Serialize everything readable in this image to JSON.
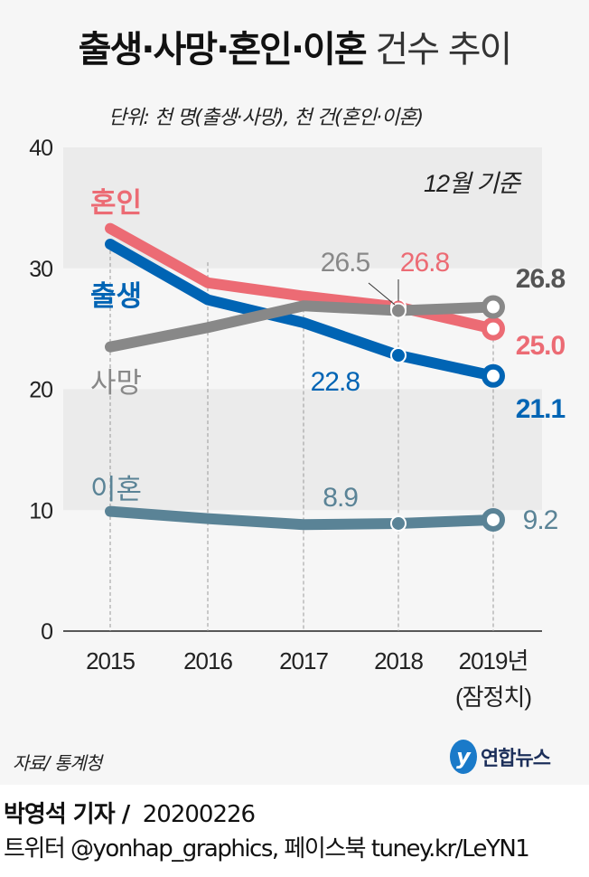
{
  "title": {
    "bold": "출생·사망·혼인·이혼",
    "light": "건수 추이"
  },
  "unit_note": "단위: 천 명(출생·사망), 천 건(혼인·이혼)",
  "basis_note": "12월 기준",
  "source": "자료/ 통계청",
  "logo_text": "연합뉴스",
  "byline": {
    "reporter": "박영석 기자 /",
    "date": "20200226"
  },
  "sns": "트위터 @yonhap_graphics, 페이스북 tuney.kr/LeYN1",
  "chart_data": {
    "type": "line",
    "categories": [
      "2015",
      "2016",
      "2017",
      "2018",
      "2019년"
    ],
    "category_sublabel": "(잠정치)",
    "ylim": [
      0,
      40
    ],
    "yticks": [
      "0",
      "10",
      "20",
      "30",
      "40"
    ],
    "grid": "alternating horizontal bands",
    "series": [
      {
        "name": "혼인",
        "color": "#ec6b74",
        "values": [
          33.3,
          28.8,
          27.7,
          26.8,
          25.0
        ],
        "labels": {
          "3": "26.8",
          "4": "25.0"
        }
      },
      {
        "name": "출생",
        "color": "#0064b4",
        "values": [
          32.0,
          27.4,
          25.5,
          22.8,
          21.1
        ],
        "labels": {
          "3": "22.8",
          "4": "21.1"
        }
      },
      {
        "name": "사망",
        "color": "#888888",
        "values": [
          23.5,
          25.1,
          26.9,
          26.5,
          26.8
        ],
        "labels": {
          "3": "26.5",
          "4": "26.8"
        }
      },
      {
        "name": "이혼",
        "color": "#5a8396",
        "values": [
          9.9,
          9.3,
          8.8,
          8.9,
          9.2
        ],
        "labels": {
          "3": "8.9",
          "4": "9.2"
        }
      }
    ]
  }
}
